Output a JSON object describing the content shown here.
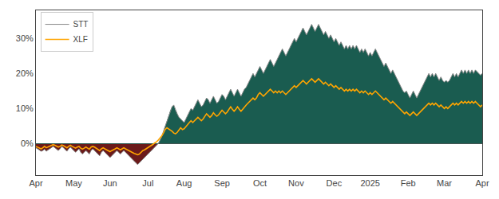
{
  "chart_data": {
    "type": "line",
    "categories": [
      "Apr",
      null,
      null,
      null,
      null,
      null,
      null,
      null,
      null,
      null,
      null,
      null,
      null,
      null,
      null,
      null,
      null,
      null,
      null,
      null,
      null,
      null,
      "May",
      null,
      null,
      null,
      null,
      null,
      null,
      null,
      null,
      null,
      null,
      null,
      null,
      null,
      null,
      null,
      null,
      null,
      null,
      null,
      null,
      "Jun",
      null,
      null,
      null,
      null,
      null,
      null,
      null,
      null,
      null,
      null,
      null,
      null,
      null,
      null,
      null,
      null,
      null,
      null,
      null,
      null,
      null,
      "Jul",
      null,
      null,
      null,
      null,
      null,
      null,
      null,
      null,
      null,
      null,
      null,
      null,
      null,
      null,
      null,
      null,
      null,
      null,
      null,
      null,
      "Aug",
      null,
      null,
      null,
      null,
      null,
      null,
      null,
      null,
      null,
      null,
      null,
      null,
      null,
      null,
      null,
      null,
      null,
      null,
      null,
      null,
      null,
      "Sep",
      null,
      null,
      null,
      null,
      null,
      null,
      null,
      null,
      null,
      null,
      null,
      null,
      null,
      null,
      null,
      null,
      null,
      null,
      null,
      null,
      null,
      "Oct",
      null,
      null,
      null,
      null,
      null,
      null,
      null,
      null,
      null,
      null,
      null,
      null,
      null,
      null,
      null,
      null,
      null,
      null,
      null,
      null,
      "Nov",
      null,
      null,
      null,
      null,
      null,
      null,
      null,
      null,
      null,
      null,
      null,
      null,
      null,
      null,
      null,
      null,
      null,
      null,
      null,
      null,
      null,
      "Dec",
      null,
      null,
      null,
      null,
      null,
      null,
      null,
      null,
      null,
      null,
      null,
      null,
      null,
      null,
      null,
      null,
      null,
      null,
      null,
      null,
      "2025",
      null,
      null,
      null,
      null,
      null,
      null,
      null,
      null,
      null,
      null,
      null,
      null,
      null,
      null,
      null,
      null,
      null,
      null,
      null,
      null,
      null,
      "Feb",
      null,
      null,
      null,
      null,
      null,
      null,
      null,
      null,
      null,
      null,
      null,
      null,
      null,
      null,
      null,
      null,
      null,
      null,
      null,
      null,
      "Mar",
      null,
      null,
      null,
      null,
      null,
      null,
      null,
      null,
      null,
      null,
      null,
      null,
      null,
      null,
      null,
      null,
      null,
      null,
      null,
      null,
      null,
      "Apr"
    ],
    "series": [
      {
        "name": "STT",
        "type": "area",
        "color": "#888888",
        "colors": [
          "#1a5c50",
          "#6b1a1a"
        ],
        "values": [
          -1.2,
          -1.5,
          -1.8,
          -2.2,
          -2.0,
          -1.6,
          -2.2,
          -1.8,
          -1.5,
          -1.2,
          -0.8,
          -1.2,
          -1.6,
          -2.0,
          -1.5,
          -0.8,
          -1.2,
          -1.8,
          -2.2,
          -1.5,
          -1.0,
          -1.5,
          -2.0,
          -2.5,
          -2.0,
          -1.5,
          -2.5,
          -3.0,
          -2.5,
          -2.0,
          -2.5,
          -3.0,
          -2.0,
          -1.5,
          -2.0,
          -2.5,
          -3.0,
          -3.5,
          -2.5,
          -2.0,
          -2.5,
          -3.0,
          -3.5,
          -4.0,
          -3.5,
          -3.0,
          -2.5,
          -2.0,
          -2.5,
          -3.0,
          -2.5,
          -2.0,
          -2.5,
          -3.0,
          -3.5,
          -4.0,
          -4.5,
          -5.0,
          -5.5,
          -6.0,
          -5.5,
          -5.0,
          -4.5,
          -4.0,
          -3.5,
          -3.0,
          -2.5,
          -2.0,
          -1.5,
          -1.0,
          -0.5,
          0.0,
          1.0,
          2.0,
          3.5,
          5.0,
          6.5,
          8.0,
          9.5,
          10.5,
          11.0,
          9.5,
          8.5,
          7.5,
          7.0,
          6.5,
          6.0,
          7.0,
          8.0,
          9.0,
          10.0,
          9.5,
          10.5,
          11.5,
          12.5,
          11.5,
          10.5,
          11.0,
          12.0,
          13.0,
          12.5,
          11.5,
          12.5,
          13.5,
          12.5,
          11.5,
          12.0,
          13.0,
          14.0,
          13.5,
          12.5,
          13.5,
          14.5,
          15.5,
          14.5,
          13.5,
          14.5,
          15.5,
          14.5,
          13.5,
          14.5,
          15.5,
          16.0,
          17.0,
          18.0,
          19.0,
          20.0,
          19.0,
          20.0,
          21.0,
          22.0,
          21.0,
          20.0,
          21.0,
          22.0,
          23.0,
          24.0,
          23.0,
          22.0,
          23.0,
          24.0,
          25.0,
          26.0,
          27.0,
          26.0,
          25.0,
          26.0,
          27.0,
          28.0,
          29.0,
          30.0,
          29.0,
          30.0,
          31.0,
          32.0,
          33.0,
          32.0,
          31.0,
          32.0,
          33.0,
          34.0,
          33.0,
          32.0,
          33.0,
          34.0,
          33.0,
          32.0,
          31.0,
          32.0,
          31.0,
          30.0,
          31.0,
          30.0,
          29.0,
          30.0,
          29.0,
          28.0,
          29.0,
          28.0,
          27.0,
          28.0,
          27.0,
          28.0,
          27.0,
          28.0,
          27.0,
          28.0,
          27.0,
          26.0,
          27.0,
          26.0,
          27.0,
          26.0,
          25.0,
          26.0,
          25.0,
          26.0,
          27.0,
          26.0,
          25.0,
          24.0,
          23.0,
          22.0,
          23.0,
          22.0,
          21.0,
          20.0,
          21.0,
          20.0,
          19.0,
          18.0,
          17.0,
          16.0,
          15.0,
          14.5,
          15.0,
          14.0,
          13.0,
          14.0,
          15.0,
          14.0,
          13.0,
          14.0,
          15.0,
          16.0,
          17.0,
          18.0,
          19.0,
          20.0,
          19.0,
          20.0,
          19.0,
          20.0,
          19.0,
          18.0,
          19.0,
          18.0,
          17.5,
          18.0,
          17.5,
          18.0,
          19.0,
          20.0,
          19.0,
          20.0,
          19.0,
          20.0,
          21.0,
          20.0,
          21.0,
          20.0,
          21.0,
          20.0,
          21.0,
          20.0,
          21.0,
          20.5,
          20.0,
          19.5,
          20.0
        ]
      },
      {
        "name": "XLF",
        "type": "line",
        "color": "#FFA500",
        "values": [
          -0.8,
          -1.0,
          -1.2,
          -1.5,
          -1.2,
          -0.8,
          -1.2,
          -1.0,
          -0.8,
          -0.5,
          -0.3,
          -0.5,
          -0.8,
          -1.0,
          -0.8,
          -0.4,
          -0.6,
          -1.0,
          -1.2,
          -0.8,
          -0.5,
          -0.8,
          -1.0,
          -1.3,
          -1.0,
          -0.8,
          -1.3,
          -1.6,
          -1.3,
          -1.0,
          -1.3,
          -1.6,
          -1.0,
          -0.8,
          -1.0,
          -1.3,
          -1.6,
          -2.0,
          -1.5,
          -1.2,
          -1.5,
          -1.8,
          -2.0,
          -2.3,
          -2.0,
          -1.8,
          -1.5,
          -1.2,
          -1.5,
          -1.8,
          -1.5,
          -1.2,
          -1.5,
          -1.8,
          -2.0,
          -2.3,
          -2.5,
          -2.8,
          -3.0,
          -3.2,
          -3.0,
          -2.5,
          -2.0,
          -1.8,
          -1.5,
          -1.2,
          -0.8,
          -0.5,
          -0.2,
          0.2,
          0.5,
          1.0,
          1.5,
          2.2,
          3.0,
          4.0,
          4.5,
          4.2,
          3.8,
          3.5,
          3.0,
          2.8,
          3.2,
          3.8,
          4.5,
          4.0,
          4.2,
          4.8,
          5.5,
          6.0,
          6.5,
          6.0,
          6.5,
          7.0,
          7.5,
          7.0,
          6.5,
          7.0,
          7.8,
          8.5,
          8.0,
          7.5,
          8.0,
          8.8,
          8.2,
          7.8,
          8.2,
          8.8,
          9.5,
          9.0,
          8.5,
          9.0,
          9.8,
          10.5,
          9.8,
          9.2,
          9.8,
          10.5,
          9.8,
          9.2,
          9.8,
          10.5,
          11.0,
          11.5,
          12.0,
          12.5,
          13.0,
          12.5,
          13.0,
          14.0,
          14.5,
          14.0,
          13.5,
          14.0,
          14.5,
          15.0,
          15.5,
          15.0,
          14.5,
          15.0,
          14.5,
          15.0,
          14.5,
          15.0,
          14.5,
          14.0,
          14.5,
          15.0,
          15.5,
          16.0,
          16.5,
          16.0,
          16.5,
          17.0,
          17.5,
          18.0,
          17.5,
          17.0,
          17.5,
          18.0,
          18.5,
          18.0,
          17.5,
          18.0,
          18.5,
          18.0,
          17.5,
          17.0,
          17.5,
          17.0,
          16.5,
          17.0,
          16.5,
          16.0,
          16.5,
          16.0,
          15.5,
          16.0,
          15.5,
          15.0,
          15.5,
          15.0,
          15.5,
          15.0,
          15.5,
          15.0,
          15.5,
          15.0,
          14.5,
          15.0,
          14.5,
          15.0,
          14.5,
          14.0,
          14.5,
          14.0,
          14.5,
          15.0,
          14.5,
          14.0,
          13.5,
          13.0,
          12.5,
          13.0,
          12.5,
          12.0,
          11.5,
          12.0,
          11.5,
          11.0,
          10.5,
          10.0,
          9.5,
          9.0,
          8.5,
          9.0,
          8.5,
          8.0,
          8.5,
          9.0,
          8.5,
          8.0,
          8.5,
          9.0,
          9.5,
          10.0,
          10.5,
          11.0,
          11.5,
          11.0,
          11.5,
          11.0,
          11.5,
          11.0,
          10.5,
          11.0,
          10.5,
          10.0,
          10.5,
          10.0,
          10.5,
          11.0,
          11.5,
          11.0,
          11.5,
          11.0,
          11.5,
          12.0,
          11.5,
          12.0,
          11.5,
          12.0,
          11.5,
          12.0,
          11.5,
          12.0,
          11.5,
          11.0,
          10.5,
          11.0
        ]
      }
    ],
    "ylim": [
      -9,
      38
    ],
    "yticks": [
      {
        "value": 0,
        "label": "0%"
      },
      {
        "value": 10,
        "label": "10%"
      },
      {
        "value": 20,
        "label": "20%"
      },
      {
        "value": 30,
        "label": "30%"
      }
    ],
    "grid": false,
    "legend": "upper left"
  }
}
